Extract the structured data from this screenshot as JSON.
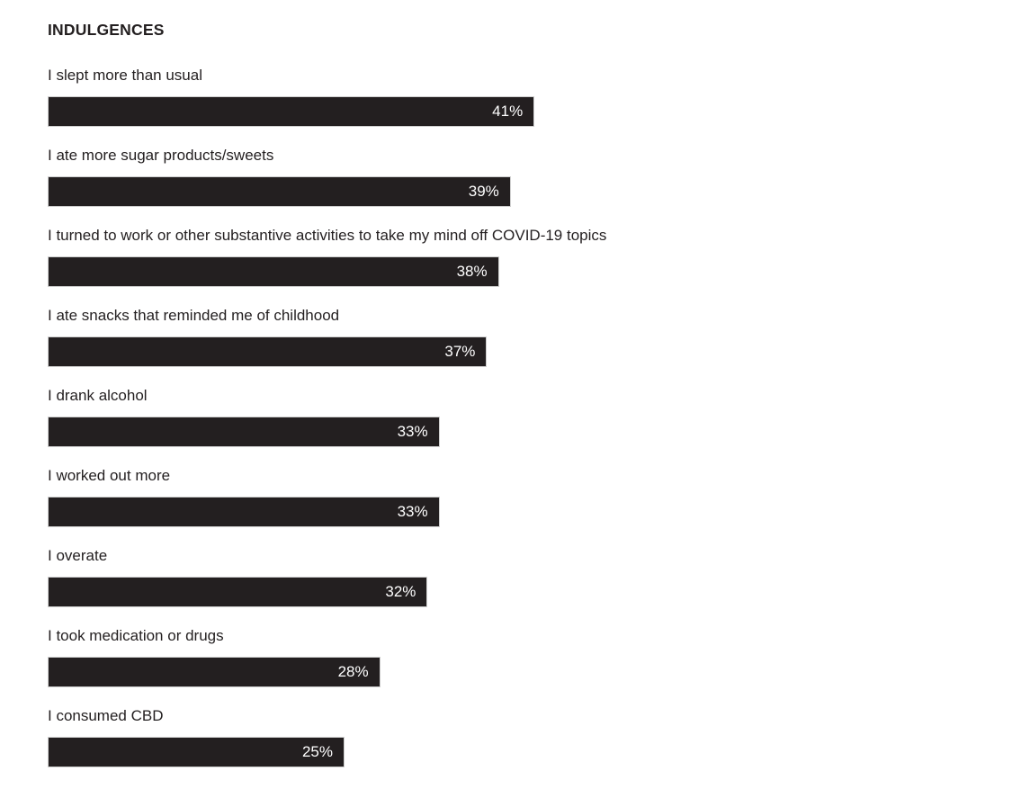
{
  "page": {
    "background": "#ffffff"
  },
  "chart_data": {
    "type": "bar",
    "orientation": "horizontal",
    "title": "INDULGENCES",
    "categories": [
      "I slept more than usual",
      "I ate more sugar products/sweets",
      "I turned to work or other substantive activities to take my mind off COVID-19 topics",
      "I ate snacks that reminded me of childhood",
      "I drank alcohol",
      "I worked out more",
      "I overate",
      "I took medication or drugs",
      "I consumed CBD"
    ],
    "values": [
      41,
      39,
      38,
      37,
      33,
      33,
      32,
      28,
      25
    ],
    "value_labels": [
      "41%",
      "39%",
      "38%",
      "37%",
      "33%",
      "33%",
      "32%",
      "28%",
      "25%"
    ],
    "unit": "%",
    "xlim": [
      0,
      77
    ],
    "grid": false,
    "legend": "none",
    "value_label_position": "inside-end",
    "category_label_position": "above-bar",
    "colors": {
      "bar_fill": "#231f20",
      "bar_value_text": "#ffffff",
      "category_text": "#231f20",
      "title_text": "#231f20"
    }
  }
}
